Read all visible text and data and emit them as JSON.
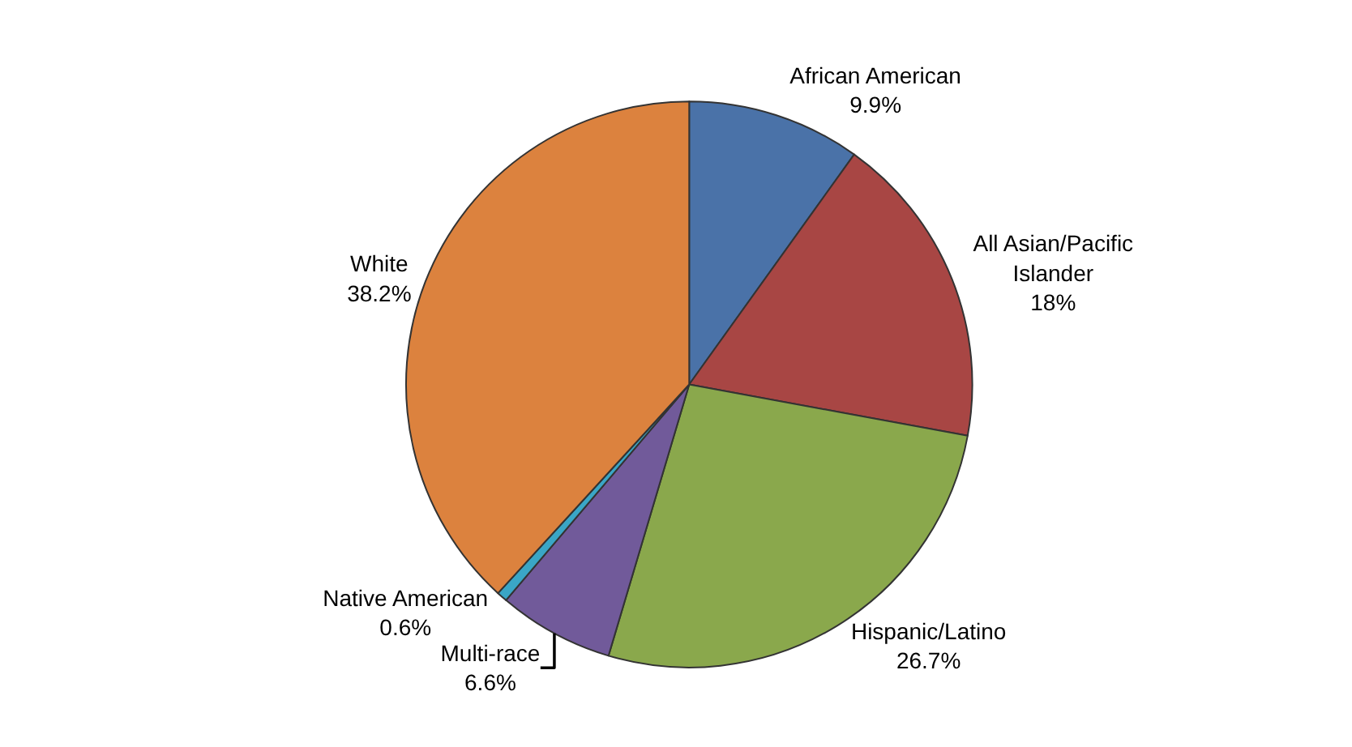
{
  "chart_data": {
    "type": "pie",
    "categories": [
      "African American",
      "All Asian/Pacific\nIslander",
      "Hispanic/Latino",
      "Multi-race",
      "Native American",
      "White"
    ],
    "values": [
      9.9,
      18,
      26.7,
      6.6,
      0.6,
      38.2
    ],
    "value_labels": [
      "9.9%",
      "18%",
      "26.7%",
      "6.6%",
      "0.6%",
      "38.2%"
    ],
    "colors": [
      "#4a72a8",
      "#a84644",
      "#8aa84c",
      "#715a9a",
      "#3aa6c6",
      "#dc823e"
    ],
    "legend": false
  }
}
